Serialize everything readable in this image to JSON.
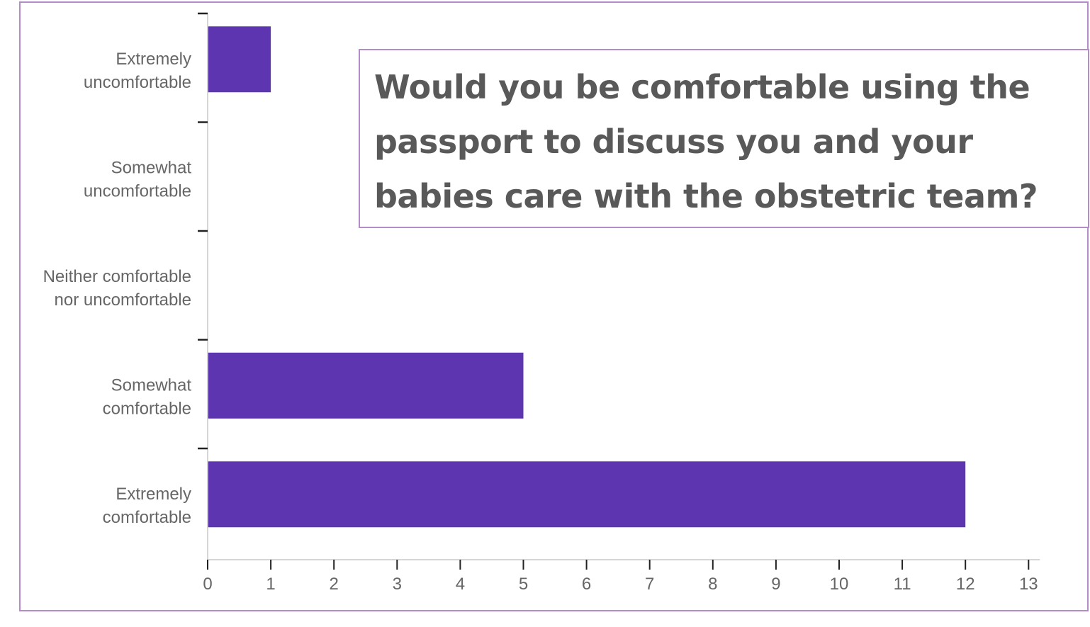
{
  "chart_data": {
    "type": "bar",
    "orientation": "horizontal",
    "categories": [
      "Extremely uncomfortable",
      "Somewhat uncomfortable",
      "Neither comfortable nor uncomfortable",
      "Somewhat comfortable",
      "Extremely comfortable"
    ],
    "category_lines": [
      [
        "Extremely",
        "uncomfortable"
      ],
      [
        "Somewhat",
        "uncomfortable"
      ],
      [
        "Neither comfortable",
        "nor uncomfortable"
      ],
      [
        "Somewhat",
        "comfortable"
      ],
      [
        "Extremely",
        "comfortable"
      ]
    ],
    "values": [
      1,
      0,
      0,
      5,
      12
    ],
    "xlim": [
      0,
      13
    ],
    "xticks": [
      "0",
      "1",
      "2",
      "3",
      "4",
      "5",
      "6",
      "7",
      "8",
      "9",
      "10",
      "11",
      "12",
      "13"
    ],
    "bar_color": "#5e35b1",
    "grid": false,
    "title": "Would you be comfortable using the passport to discuss you and your babies care with the obstetric team?"
  },
  "colors": {
    "border": "#b48cc8",
    "title_text": "#595959",
    "axis_text": "#666666"
  }
}
